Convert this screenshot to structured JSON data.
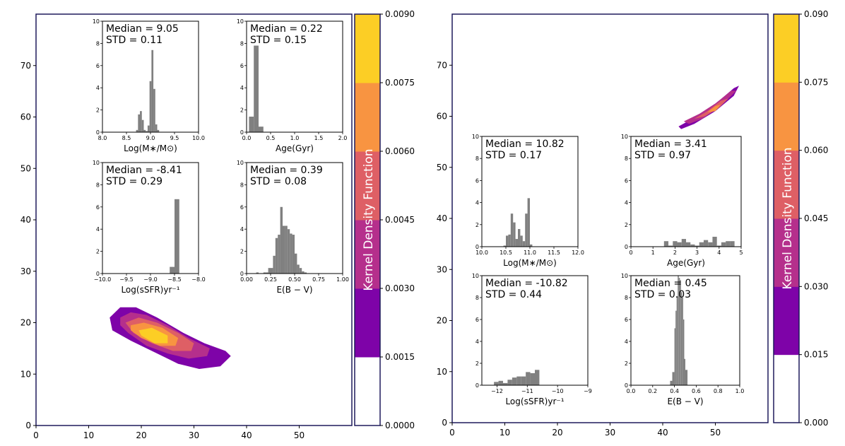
{
  "panels": [
    {
      "name": "left",
      "xlim": [
        0,
        60
      ],
      "ylim": [
        0,
        80
      ],
      "x_ticks": [
        "0",
        "10",
        "20",
        "30",
        "40",
        "50"
      ],
      "y_ticks": [
        "0",
        "10",
        "20",
        "30",
        "40",
        "50",
        "60",
        "70"
      ],
      "colorbar_label": "Kernel Density Function",
      "colorbar_ticks": [
        "0.0000",
        "0.0015",
        "0.0030",
        "0.0045",
        "0.0060",
        "0.0075",
        "0.0090"
      ]
    },
    {
      "name": "right",
      "xlim": [
        0,
        60
      ],
      "ylim": [
        0,
        80
      ],
      "x_ticks": [
        "0",
        "10",
        "20",
        "30",
        "40",
        "50"
      ],
      "y_ticks": [
        "0",
        "10",
        "20",
        "30",
        "40",
        "50",
        "60",
        "70"
      ],
      "colorbar_label": "Kernel Density Function",
      "colorbar_ticks": [
        "0.000",
        "0.015",
        "0.030",
        "0.045",
        "0.060",
        "0.075",
        "0.090"
      ]
    }
  ],
  "colors": {
    "levels": [
      "#ffffff",
      "#7e03a8",
      "#b52f8c",
      "#de5f65",
      "#f89441",
      "#fcce25"
    ],
    "hist": "#808080",
    "frame": "#1f1a5c"
  },
  "chart_data": [
    {
      "type": "histogram",
      "panel": "left",
      "median_label": "Median = 9.05",
      "std_label": "STD = 0.11",
      "xlabel": "Log(M∗/M⊙)",
      "xlim": [
        8.0,
        10.0
      ],
      "ylim": [
        0,
        10
      ],
      "x_ticks": [
        "8.0",
        "8.5",
        "9.0",
        "9.5",
        "10.0"
      ],
      "y_ticks": [
        "0",
        "2",
        "4",
        "6",
        "8",
        "10"
      ],
      "bin_edges": [
        8.7,
        8.74,
        8.78,
        8.82,
        8.86,
        8.9,
        8.94,
        8.98,
        9.02,
        9.06,
        9.1,
        9.14,
        9.18
      ],
      "counts": [
        0.2,
        1.6,
        1.9,
        1.1,
        0.2,
        0.1,
        0.6,
        4.6,
        7.4,
        3.9,
        0.7,
        0.2
      ]
    },
    {
      "type": "histogram",
      "panel": "left",
      "median_label": "Median = 0.22",
      "std_label": "STD = 0.15",
      "xlabel": "Age(Gyr)",
      "xlim": [
        0.0,
        2.0
      ],
      "ylim": [
        0,
        10
      ],
      "x_ticks": [
        "0.0",
        "0.5",
        "1.0",
        "1.5",
        "2.0"
      ],
      "y_ticks": [
        "0",
        "2",
        "4",
        "6",
        "8",
        "10"
      ],
      "bin_edges": [
        0.05,
        0.15,
        0.25,
        0.35
      ],
      "counts": [
        1.4,
        7.8,
        0.5
      ]
    },
    {
      "type": "histogram",
      "panel": "left",
      "median_label": "Median = -8.41",
      "std_label": "STD = 0.29",
      "xlabel": "Log(sSFR)yr⁻¹",
      "xlim": [
        -10.0,
        -8.0
      ],
      "ylim": [
        0,
        10
      ],
      "x_ticks": [
        "−10.0",
        "−9.5",
        "−9.0",
        "−8.5",
        "−8.0"
      ],
      "y_ticks": [
        "0",
        "2",
        "4",
        "6",
        "8",
        "10"
      ],
      "bin_edges": [
        -8.6,
        -8.5,
        -8.4
      ],
      "counts": [
        0.6,
        6.7
      ]
    },
    {
      "type": "histogram",
      "panel": "left",
      "median_label": "Median = 0.39",
      "std_label": "STD = 0.08",
      "xlabel": "E(B − V)",
      "xlim": [
        0.0,
        1.0
      ],
      "ylim": [
        0,
        10
      ],
      "x_ticks": [
        "0.00",
        "0.25",
        "0.50",
        "0.75",
        "1.00"
      ],
      "y_ticks": [
        "0",
        "2",
        "4",
        "6",
        "8",
        "10"
      ],
      "bin_edges": [
        0.1,
        0.125,
        0.15,
        0.175,
        0.2,
        0.225,
        0.25,
        0.275,
        0.3,
        0.325,
        0.35,
        0.375,
        0.4,
        0.425,
        0.45,
        0.475,
        0.5,
        0.525,
        0.55,
        0.575,
        0.6,
        0.625
      ],
      "counts": [
        0.1,
        0,
        0,
        0.1,
        0.1,
        0.5,
        0.5,
        1.6,
        3.2,
        3.5,
        6.0,
        4.3,
        4.3,
        4.0,
        3.6,
        3.5,
        1.8,
        0.8,
        0.5,
        0.2,
        0.1
      ]
    },
    {
      "type": "histogram",
      "panel": "right",
      "median_label": "Median = 10.82",
      "std_label": "STD = 0.17",
      "xlabel": "Log(M∗/M⊙)",
      "xlim": [
        10.0,
        12.0
      ],
      "ylim": [
        0,
        10
      ],
      "x_ticks": [
        "10.0",
        "10.5",
        "11.0",
        "11.5",
        "12.0"
      ],
      "y_ticks": [
        "0",
        "2",
        "4",
        "6",
        "8",
        "10"
      ],
      "bin_edges": [
        10.45,
        10.5,
        10.55,
        10.6,
        10.65,
        10.7,
        10.75,
        10.8,
        10.85,
        10.9,
        10.95,
        11.0,
        11.05
      ],
      "counts": [
        0.1,
        1.0,
        1.1,
        3.0,
        2.2,
        0.7,
        1.6,
        1.0,
        0.5,
        3.0,
        4.4,
        0.2
      ]
    },
    {
      "type": "histogram",
      "panel": "right",
      "median_label": "Median = 3.41",
      "std_label": "STD = 0.97",
      "xlabel": "Age(Gyr)",
      "xlim": [
        0,
        5
      ],
      "ylim": [
        0,
        10
      ],
      "x_ticks": [
        "0",
        "1",
        "2",
        "3",
        "4",
        "5"
      ],
      "y_ticks": [
        "0",
        "2",
        "4",
        "6",
        "8",
        "10"
      ],
      "bin_edges": [
        1.5,
        1.7,
        1.9,
        2.1,
        2.3,
        2.5,
        2.7,
        2.9,
        3.1,
        3.3,
        3.5,
        3.7,
        3.9,
        4.1,
        4.3,
        4.5,
        4.7
      ],
      "counts": [
        0.5,
        0.1,
        0.5,
        0.4,
        0.7,
        0.4,
        0.2,
        0.1,
        0.4,
        0.6,
        0.4,
        0.9,
        0.1,
        0.4,
        0.5,
        0.5
      ]
    },
    {
      "type": "histogram",
      "panel": "right",
      "median_label": "Median = -10.82",
      "std_label": "STD = 0.44",
      "xlabel": "Log(sSFR)yr⁻¹",
      "xlim": [
        -12.5,
        -9.0
      ],
      "ylim": [
        0,
        10
      ],
      "x_ticks": [
        "−12",
        "−11",
        "−10",
        "−9"
      ],
      "y_ticks": [
        "0",
        "2",
        "4",
        "6",
        "8",
        "10"
      ],
      "bin_edges": [
        -12.1,
        -11.95,
        -11.8,
        -11.65,
        -11.5,
        -11.35,
        -11.2,
        -11.05,
        -10.9,
        -10.75,
        -10.6
      ],
      "counts": [
        0.3,
        0.4,
        0.2,
        0.5,
        0.7,
        0.8,
        0.8,
        1.2,
        1.1,
        1.4
      ]
    },
    {
      "type": "histogram",
      "panel": "right",
      "median_label": "Median = 0.45",
      "std_label": "STD = 0.03",
      "xlabel": "E(B − V)",
      "xlim": [
        0.0,
        1.0
      ],
      "ylim": [
        0,
        10
      ],
      "x_ticks": [
        "0.0",
        "0.2",
        "0.4",
        "0.6",
        "0.8",
        "1.0"
      ],
      "y_ticks": [
        "0",
        "2",
        "4",
        "6",
        "8",
        "10"
      ],
      "bin_edges": [
        0.36,
        0.38,
        0.4,
        0.41,
        0.42,
        0.43,
        0.44,
        0.45,
        0.46,
        0.47,
        0.48,
        0.49,
        0.5,
        0.52
      ],
      "counts": [
        0.4,
        1.2,
        5.2,
        6.8,
        8.1,
        10.0,
        9.8,
        9.6,
        8.5,
        8.0,
        6.0,
        2.4,
        1.4
      ]
    }
  ],
  "kde_contours": [
    {
      "panel": "left",
      "levels": [
        [
          [
            14,
            21
          ],
          [
            16,
            23
          ],
          [
            19,
            23
          ],
          [
            23,
            21
          ],
          [
            28,
            18
          ],
          [
            32,
            16
          ],
          [
            36,
            14.5
          ],
          [
            37,
            13.5
          ],
          [
            35,
            11.5
          ],
          [
            31,
            11
          ],
          [
            27,
            12
          ],
          [
            23,
            14
          ],
          [
            18,
            16.5
          ],
          [
            14.5,
            18.5
          ]
        ],
        [
          [
            16,
            21
          ],
          [
            18,
            22
          ],
          [
            21,
            21.5
          ],
          [
            25,
            19.5
          ],
          [
            29,
            17
          ],
          [
            33,
            15
          ],
          [
            32.5,
            13.5
          ],
          [
            29,
            13
          ],
          [
            25,
            14
          ],
          [
            21,
            15.5
          ],
          [
            17.5,
            18
          ],
          [
            16,
            19.5
          ]
        ],
        [
          [
            17,
            20
          ],
          [
            19.5,
            21
          ],
          [
            23,
            20
          ],
          [
            27,
            18
          ],
          [
            30,
            16
          ],
          [
            29.5,
            14.5
          ],
          [
            26,
            14.5
          ],
          [
            22,
            16
          ],
          [
            18.5,
            18
          ]
        ],
        [
          [
            18,
            19.5
          ],
          [
            20.5,
            20
          ],
          [
            24,
            19
          ],
          [
            27,
            17
          ],
          [
            26.5,
            15.5
          ],
          [
            23.5,
            15.5
          ],
          [
            20,
            17
          ],
          [
            18,
            18.5
          ]
        ],
        [
          [
            19.5,
            18.5
          ],
          [
            22,
            19
          ],
          [
            25,
            17.5
          ],
          [
            25,
            16
          ],
          [
            22.5,
            16
          ],
          [
            20,
            17.5
          ]
        ]
      ]
    },
    {
      "panel": "right",
      "levels": [
        [
          [
            43,
            58
          ],
          [
            46.5,
            60
          ],
          [
            49.5,
            62
          ],
          [
            53.5,
            65.5
          ],
          [
            54.5,
            66
          ],
          [
            53.5,
            64
          ],
          [
            50,
            61
          ],
          [
            46,
            58.5
          ],
          [
            43.5,
            57.5
          ]
        ],
        [
          [
            44,
            59
          ],
          [
            47,
            60.5
          ],
          [
            50,
            62.5
          ],
          [
            53,
            65
          ],
          [
            54,
            65
          ],
          [
            51,
            62
          ],
          [
            47.5,
            59.5
          ],
          [
            45,
            58.5
          ]
        ],
        [
          [
            46,
            59.5
          ],
          [
            48.5,
            61
          ],
          [
            51,
            63
          ],
          [
            52.5,
            63.5
          ],
          [
            50.5,
            61.5
          ],
          [
            48,
            60
          ]
        ],
        [
          [
            48.5,
            60.8
          ],
          [
            50,
            62
          ],
          [
            51,
            62.3
          ],
          [
            50,
            61
          ]
        ]
      ]
    }
  ]
}
